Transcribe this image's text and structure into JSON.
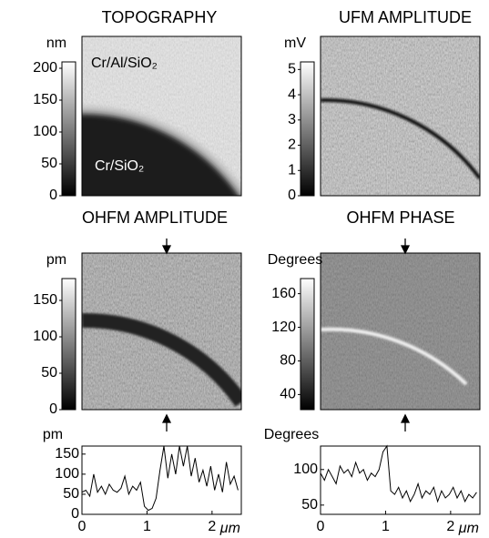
{
  "images": [
    {
      "title": "TOPOGRAPHY",
      "colorbar": {
        "unit": "nm",
        "lim": [
          0,
          210
        ],
        "ticks": [
          0,
          50,
          100,
          150,
          200
        ]
      },
      "annotations": [
        "Cr/Al/SiO₂",
        "Cr/SiO₂"
      ]
    },
    {
      "title": "UFM AMPLITUDE",
      "colorbar": {
        "unit": "mV",
        "lim": [
          0,
          5.3
        ],
        "ticks": [
          0,
          1,
          2,
          3,
          4,
          5
        ]
      }
    },
    {
      "title": "OHFM AMPLITUDE",
      "colorbar": {
        "unit": "pm",
        "lim": [
          0,
          180
        ],
        "ticks": [
          0,
          50,
          100,
          150
        ]
      }
    },
    {
      "title": "OHFM PHASE",
      "colorbar": {
        "unit": "Degrees",
        "lim": [
          22,
          178
        ],
        "ticks": [
          40,
          80,
          120,
          160
        ]
      }
    }
  ],
  "chart_data": [
    {
      "type": "line",
      "ylabel": "pm",
      "xlabel": "μm",
      "xlim": [
        0,
        2.45
      ],
      "xticks": [
        0,
        1,
        2
      ],
      "ylim": [
        0,
        170
      ],
      "yticks": [
        0,
        50,
        100,
        150
      ],
      "x": [
        0,
        0.06,
        0.12,
        0.18,
        0.24,
        0.3,
        0.36,
        0.42,
        0.48,
        0.54,
        0.6,
        0.66,
        0.72,
        0.78,
        0.84,
        0.9,
        0.96,
        1.02,
        1.08,
        1.14,
        1.2,
        1.26,
        1.32,
        1.38,
        1.44,
        1.5,
        1.56,
        1.62,
        1.68,
        1.74,
        1.8,
        1.86,
        1.92,
        1.98,
        2.04,
        2.1,
        2.16,
        2.22,
        2.28,
        2.34,
        2.4
      ],
      "series": [
        {
          "color": "#000000",
          "values": [
            55,
            60,
            45,
            100,
            55,
            70,
            50,
            75,
            60,
            55,
            65,
            95,
            50,
            70,
            60,
            80,
            20,
            10,
            15,
            40,
            110,
            170,
            90,
            150,
            100,
            170,
            120,
            170,
            95,
            140,
            80,
            110,
            70,
            120,
            60,
            100,
            55,
            130,
            75,
            95,
            60
          ]
        }
      ]
    },
    {
      "type": "line",
      "ylabel": "Degrees",
      "xlabel": "μm",
      "xlim": [
        0,
        2.45
      ],
      "xticks": [
        0,
        1,
        2
      ],
      "ylim": [
        37,
        133
      ],
      "yticks": [
        50,
        100
      ],
      "x": [
        0,
        0.06,
        0.12,
        0.18,
        0.24,
        0.3,
        0.36,
        0.42,
        0.48,
        0.54,
        0.6,
        0.66,
        0.72,
        0.78,
        0.84,
        0.9,
        0.96,
        1.02,
        1.08,
        1.14,
        1.2,
        1.26,
        1.32,
        1.38,
        1.44,
        1.5,
        1.56,
        1.62,
        1.68,
        1.74,
        1.8,
        1.86,
        1.92,
        1.98,
        2.04,
        2.1,
        2.16,
        2.22,
        2.28,
        2.34,
        2.4
      ],
      "series": [
        {
          "color": "#000000",
          "values": [
            95,
            85,
            100,
            90,
            80,
            105,
            95,
            100,
            90,
            110,
            95,
            100,
            85,
            95,
            90,
            100,
            125,
            133,
            70,
            65,
            75,
            60,
            70,
            55,
            65,
            80,
            60,
            70,
            65,
            75,
            55,
            70,
            60,
            65,
            75,
            60,
            70,
            55,
            65,
            60,
            68
          ]
        }
      ]
    }
  ]
}
